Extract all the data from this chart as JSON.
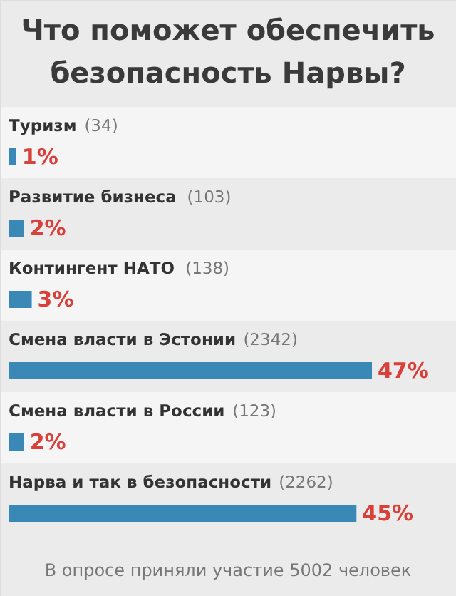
{
  "chart_data": {
    "type": "bar",
    "orientation": "horizontal",
    "title": "Что поможет обеспечить безопасность Нарвы?",
    "categories": [
      "Туризм (34)",
      "Развитие бизнеса (103)",
      "Контингент НАТО (138)",
      "Смена власти в Эстонии (2342)",
      "Смена власти в России (123)",
      "Нарва и так в безопасности (2262)"
    ],
    "values": [
      1,
      2,
      3,
      47,
      2,
      45
    ],
    "value_labels": [
      "1%",
      "2%",
      "3%",
      "47%",
      "2%",
      "45%"
    ],
    "color": "#3a88b5",
    "annotations": [
      "В опросе приняли участие 5002 человек"
    ]
  }
}
